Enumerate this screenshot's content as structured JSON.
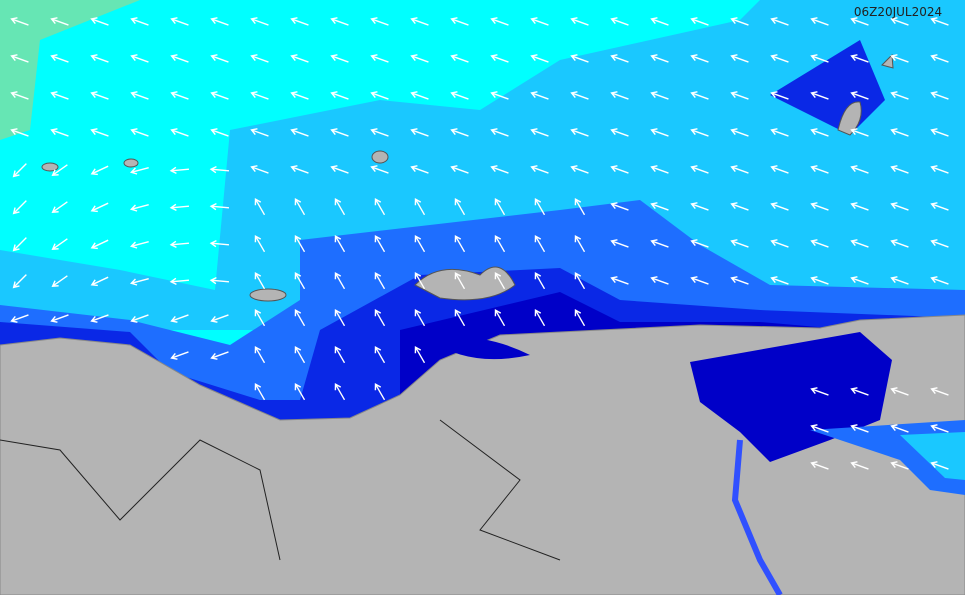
{
  "map": {
    "timestamp": "06Z20JUL2024"
  }
}
